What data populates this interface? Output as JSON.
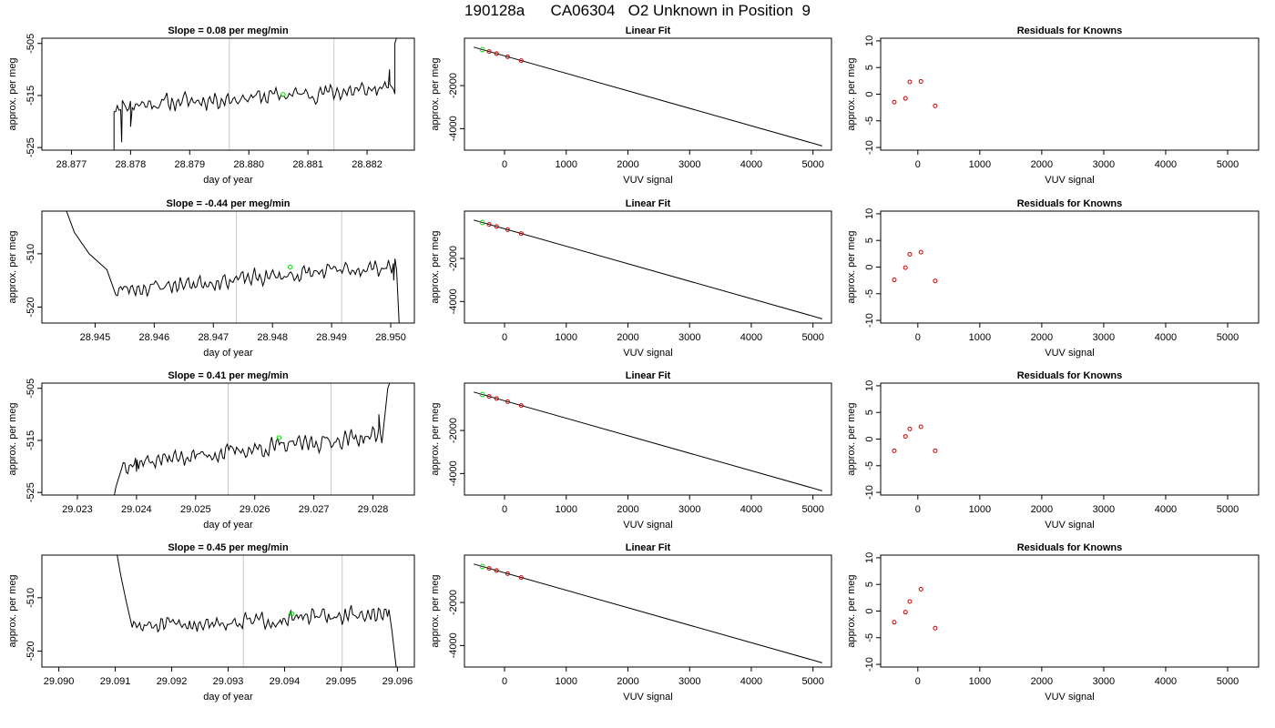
{
  "figure_title": "190128a      CA06304   O2 Unknown in Position  9",
  "colors": {
    "trace": "#000000",
    "marker_green": "#00dd00",
    "marker_red": "#cc0000",
    "cycle_lines": "#c8c8c8"
  },
  "chart_data": [
    {
      "type": "line",
      "title": "Slope =  0.08  per meg/min",
      "xlabel": "day of year",
      "ylabel": "approx. per meg",
      "xlim": [
        28.8765,
        28.8828
      ],
      "ylim": [
        -525.5,
        -504
      ],
      "xticks": [
        "28.877",
        "28.878",
        "28.879",
        "28.880",
        "28.881",
        "28.882"
      ],
      "yticks": [
        "-505",
        "-515",
        "-525"
      ],
      "cycle_lines": [
        28.87967,
        28.88144
      ],
      "unknown_point": {
        "x": 28.88058,
        "y": -514.8
      },
      "trace": {
        "x_start": 28.87772,
        "x_end": 28.88247,
        "base_start": -517.0,
        "base_end": -513.6,
        "edges": [
          [
            28.87772,
            -530
          ],
          [
            28.87785,
            -524
          ],
          [
            28.878,
            -521
          ],
          [
            28.88238,
            -510
          ],
          [
            28.88247,
            -505
          ],
          [
            28.8826,
            -500
          ]
        ],
        "amplitude": 2.2,
        "seed": 11
      }
    },
    {
      "type": "line",
      "title": "Slope =  -0.44  per meg/min",
      "xlabel": "day of year",
      "ylabel": "approx. per meg",
      "xlim": [
        28.9441,
        28.9504
      ],
      "ylim": [
        -523,
        -502
      ],
      "xticks": [
        "28.945",
        "28.946",
        "28.947",
        "28.948",
        "28.949",
        "28.950"
      ],
      "yticks": [
        "-510",
        "-520"
      ],
      "cycle_lines": [
        28.94739,
        28.94917
      ],
      "unknown_point": {
        "x": 28.9483,
        "y": -512.5
      },
      "trace": {
        "x_start": 28.94535,
        "x_end": 28.9501,
        "base_start": -516.8,
        "base_end": -512.3,
        "edges": [
          [
            28.94445,
            -500
          ],
          [
            28.94465,
            -506
          ],
          [
            28.9449,
            -510
          ],
          [
            28.9452,
            -513
          ],
          [
            28.95005,
            -515
          ],
          [
            28.95015,
            -525
          ]
        ],
        "amplitude": 2.0,
        "seed": 23
      }
    },
    {
      "type": "line",
      "title": "Slope =  0.41  per meg/min",
      "xlabel": "day of year",
      "ylabel": "approx. per meg",
      "xlim": [
        29.0224,
        29.0287
      ],
      "ylim": [
        -525.5,
        -504
      ],
      "xticks": [
        "29.023",
        "29.024",
        "29.025",
        "29.026",
        "29.027",
        "29.028"
      ],
      "yticks": [
        "-505",
        "-515",
        "-525"
      ],
      "cycle_lines": [
        29.02555,
        29.02729
      ],
      "unknown_point": {
        "x": 29.02641,
        "y": -514.5
      },
      "trace": {
        "x_start": 29.02375,
        "x_end": 29.02815,
        "base_start": -519.5,
        "base_end": -514.0,
        "edges": [
          [
            29.02355,
            -530
          ],
          [
            29.02365,
            -524
          ],
          [
            29.024,
            -521
          ],
          [
            29.0281,
            -510
          ],
          [
            29.02825,
            -505
          ],
          [
            29.0284,
            -500
          ]
        ],
        "amplitude": 2.2,
        "seed": 37
      }
    },
    {
      "type": "line",
      "title": "Slope =  0.45  per meg/min",
      "xlabel": "day of year",
      "ylabel": "approx. per meg",
      "xlim": [
        29.0897,
        29.0963
      ],
      "ylim": [
        -523,
        -502
      ],
      "xticks": [
        "29.090",
        "29.091",
        "29.092",
        "29.093",
        "29.094",
        "29.095",
        "29.096"
      ],
      "yticks": [
        "-510",
        "-520"
      ],
      "cycle_lines": [
        29.09327,
        29.09502
      ],
      "unknown_point": {
        "x": 29.09413,
        "y": -513.0
      },
      "trace": {
        "x_start": 29.0913,
        "x_end": 29.09585,
        "base_start": -515.5,
        "base_end": -513.0,
        "edges": [
          [
            29.091,
            -500
          ],
          [
            29.0911,
            -506
          ],
          [
            29.0912,
            -511
          ],
          [
            29.0959,
            -516
          ],
          [
            29.096,
            -525
          ]
        ],
        "amplitude": 2.0,
        "seed": 51
      }
    },
    {
      "type": "scatter",
      "title": "Linear Fit",
      "xlabel": "VUV signal",
      "ylabel": "approx. per meg",
      "xlim": [
        -650,
        5300
      ],
      "ylim": [
        -5000,
        200
      ],
      "xticks": [
        0,
        1000,
        2000,
        3000,
        4000,
        5000
      ],
      "yticks": [
        -2000,
        -4000
      ],
      "fit_line": [
        [
          -500,
          -215
        ],
        [
          5150,
          -4803
        ]
      ],
      "knowns": [
        [
          -250,
          -419
        ],
        [
          -130,
          -516
        ],
        [
          50,
          -662
        ],
        [
          270,
          -841
        ]
      ],
      "unknown": [
        -360,
        -330
      ]
    },
    {
      "type": "scatter",
      "title": "Linear Fit",
      "xlabel": "VUV signal",
      "ylabel": "approx. per meg",
      "xlim": [
        -650,
        5300
      ],
      "ylim": [
        -5000,
        200
      ],
      "xticks": [
        0,
        1000,
        2000,
        3000,
        4000,
        5000
      ],
      "yticks": [
        -2000,
        -4000
      ],
      "fit_line": [
        [
          -500,
          -215
        ],
        [
          5150,
          -4803
        ]
      ],
      "knowns": [
        [
          -250,
          -419
        ],
        [
          -130,
          -516
        ],
        [
          50,
          -662
        ],
        [
          270,
          -841
        ]
      ],
      "unknown": [
        -360,
        -330
      ]
    },
    {
      "type": "scatter",
      "title": "Linear Fit",
      "xlabel": "VUV signal",
      "ylabel": "approx. per meg",
      "xlim": [
        -650,
        5300
      ],
      "ylim": [
        -5000,
        200
      ],
      "xticks": [
        0,
        1000,
        2000,
        3000,
        4000,
        5000
      ],
      "yticks": [
        -2000,
        -4000
      ],
      "fit_line": [
        [
          -500,
          -215
        ],
        [
          5150,
          -4803
        ]
      ],
      "knowns": [
        [
          -250,
          -419
        ],
        [
          -130,
          -516
        ],
        [
          50,
          -662
        ],
        [
          270,
          -841
        ]
      ],
      "unknown": [
        -360,
        -330
      ]
    },
    {
      "type": "scatter",
      "title": "Linear Fit",
      "xlabel": "VUV signal",
      "ylabel": "approx. per meg",
      "xlim": [
        -650,
        5300
      ],
      "ylim": [
        -5000,
        200
      ],
      "xticks": [
        0,
        1000,
        2000,
        3000,
        4000,
        5000
      ],
      "yticks": [
        -2000,
        -4000
      ],
      "fit_line": [
        [
          -500,
          -215
        ],
        [
          5150,
          -4803
        ]
      ],
      "knowns": [
        [
          -250,
          -419
        ],
        [
          -130,
          -516
        ],
        [
          50,
          -662
        ],
        [
          270,
          -841
        ]
      ],
      "unknown": [
        -360,
        -330
      ]
    },
    {
      "type": "scatter",
      "title": "Residuals for Knowns",
      "xlabel": "VUV signal",
      "ylabel": "approx. per meg",
      "xlim": [
        -600,
        5500
      ],
      "ylim": [
        -10.5,
        10.5
      ],
      "xticks": [
        0,
        1000,
        2000,
        3000,
        4000,
        5000
      ],
      "yticks": [
        10,
        5,
        0,
        -5,
        -10
      ],
      "points": [
        [
          -380,
          -1.5
        ],
        [
          -200,
          -0.8
        ],
        [
          -130,
          2.3
        ],
        [
          50,
          2.4
        ],
        [
          280,
          -2.2
        ]
      ]
    },
    {
      "type": "scatter",
      "title": "Residuals for Knowns",
      "xlabel": "VUV signal",
      "ylabel": "approx. per meg",
      "xlim": [
        -600,
        5500
      ],
      "ylim": [
        -10.5,
        10.5
      ],
      "xticks": [
        0,
        1000,
        2000,
        3000,
        4000,
        5000
      ],
      "yticks": [
        10,
        5,
        0,
        -5,
        -10
      ],
      "points": [
        [
          -380,
          -2.4
        ],
        [
          -200,
          -0.1
        ],
        [
          -130,
          2.4
        ],
        [
          50,
          2.8
        ],
        [
          280,
          -2.6
        ]
      ]
    },
    {
      "type": "scatter",
      "title": "Residuals for Knowns",
      "xlabel": "VUV signal",
      "ylabel": "approx. per meg",
      "xlim": [
        -600,
        5500
      ],
      "ylim": [
        -10.5,
        10.5
      ],
      "xticks": [
        0,
        1000,
        2000,
        3000,
        4000,
        5000
      ],
      "yticks": [
        10,
        5,
        0,
        -5,
        -10
      ],
      "points": [
        [
          -380,
          -2.2
        ],
        [
          -200,
          0.5
        ],
        [
          -130,
          1.9
        ],
        [
          50,
          2.3
        ],
        [
          280,
          -2.2
        ]
      ]
    },
    {
      "type": "scatter",
      "title": "Residuals for Knowns",
      "xlabel": "VUV signal",
      "ylabel": "approx. per meg",
      "xlim": [
        -600,
        5500
      ],
      "ylim": [
        -10.5,
        10.5
      ],
      "xticks": [
        0,
        1000,
        2000,
        3000,
        4000,
        5000
      ],
      "yticks": [
        10,
        5,
        0,
        -5,
        -10
      ],
      "points": [
        [
          -380,
          -2.1
        ],
        [
          -200,
          -0.2
        ],
        [
          -130,
          1.8
        ],
        [
          50,
          4.1
        ],
        [
          280,
          -3.2
        ]
      ]
    }
  ]
}
